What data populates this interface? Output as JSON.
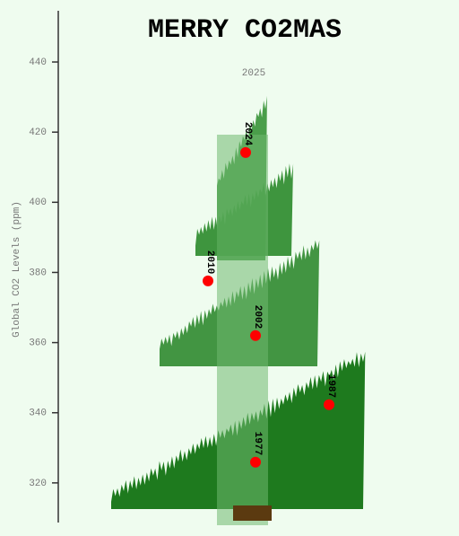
{
  "chart_data": {
    "type": "scatter",
    "title": "MERRY CO2MAS",
    "annotation": "2025",
    "ylabel": "Global CO2 Levels (ppm)",
    "categories": [
      "2024",
      "2010",
      "2002",
      "1987",
      "1977"
    ],
    "values": [
      414.2,
      377.6,
      362,
      342.3,
      325.9
    ],
    "color": "#ff0000",
    "ylim": [
      308.7,
      454.6
    ],
    "yticks": [
      320,
      340,
      360,
      380,
      400,
      420,
      440
    ]
  }
}
